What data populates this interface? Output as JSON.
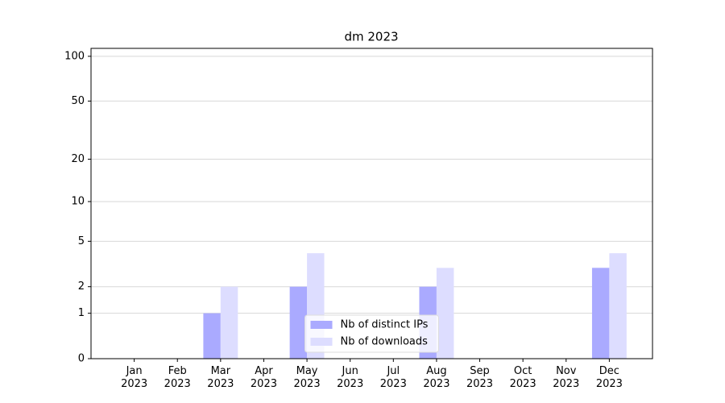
{
  "chart_data": {
    "type": "bar",
    "title": "dm 2023",
    "categories": [
      "Jan 2023",
      "Feb 2023",
      "Mar 2023",
      "Apr 2023",
      "May 2023",
      "Jun 2023",
      "Jul 2023",
      "Aug 2023",
      "Sep 2023",
      "Oct 2023",
      "Nov 2023",
      "Dec 2023"
    ],
    "series": [
      {
        "name": "Nb of distinct IPs",
        "color": "#aaaaff",
        "values": [
          0,
          0,
          1,
          0,
          2,
          0,
          0,
          2,
          0,
          0,
          0,
          3
        ]
      },
      {
        "name": "Nb of downloads",
        "color": "#ddddff",
        "values": [
          0,
          0,
          2,
          0,
          4,
          0,
          0,
          3,
          0,
          0,
          0,
          4
        ]
      }
    ],
    "yscale": "log1p",
    "ylim": [
      0,
      113
    ],
    "yticks": [
      0,
      1,
      2,
      5,
      10,
      20,
      50,
      100
    ],
    "grid": true,
    "legend": "lower center"
  }
}
